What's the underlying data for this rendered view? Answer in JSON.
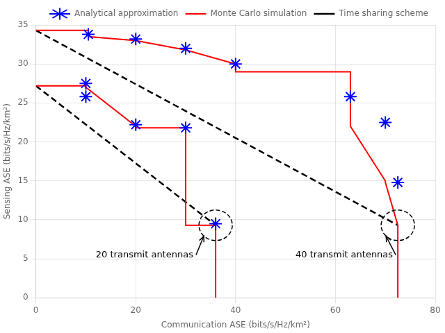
{
  "chart_data": {
    "type": "line",
    "xlabel": "Communication ASE (bits/s/Hz/km²)",
    "ylabel": "Sensing ASE (bits/s/Hz/km²)",
    "xlim": [
      0,
      80
    ],
    "ylim": [
      0,
      35
    ],
    "xticks": [
      0,
      20,
      40,
      60,
      80
    ],
    "yticks": [
      0,
      5,
      10,
      15,
      20,
      25,
      30,
      35
    ],
    "grid": true,
    "legend": "upper right",
    "series": [
      {
        "name": "Monte Carlo simulation",
        "color": "#ff0000",
        "line_style": "solid",
        "curves": [
          {
            "x": [
              0,
              10.0,
              10.0,
              20.0,
              20.0,
              30.0,
              30.0,
              36.0,
              36.0
            ],
            "values": [
              27.2,
              27.2,
              27.0,
              22.0,
              21.8,
              21.8,
              9.3,
              9.3,
              0.0
            ]
          },
          {
            "x": [
              0,
              10.5,
              10.5,
              20.0,
              30.0,
              40.0,
              40.0,
              63.0,
              63.0,
              70.0,
              70.0,
              72.5,
              72.5
            ],
            "values": [
              34.3,
              34.3,
              33.5,
              33.0,
              31.8,
              30.0,
              29.0,
              29.0,
              22.0,
              15.0,
              14.8,
              9.3,
              0.0
            ]
          }
        ]
      },
      {
        "name": "Analytical approximation",
        "color": "#0000ff",
        "marker": "star",
        "line_style": "none",
        "curves": [
          {
            "x": [
              10.0,
              10.0,
              20.0,
              30.0,
              36.0
            ],
            "values": [
              27.5,
              25.8,
              22.2,
              21.8,
              9.5
            ]
          },
          {
            "x": [
              10.5,
              20.0,
              30.0,
              40.0,
              63.0,
              70.0,
              72.5
            ],
            "values": [
              33.8,
              33.2,
              32.0,
              30.0,
              25.8,
              22.5,
              14.8
            ]
          }
        ]
      },
      {
        "name": "Time sharing scheme",
        "color": "#000000",
        "line_style": "dashed",
        "curves": [
          {
            "x": [
              0,
              36.0
            ],
            "values": [
              27.2,
              9.3
            ]
          },
          {
            "x": [
              0,
              72.5
            ],
            "values": [
              34.3,
              9.3
            ]
          }
        ]
      }
    ],
    "annotations": [
      {
        "text": "20 transmit antennas",
        "x": 12,
        "y": 5.5,
        "point": [
          36.0,
          9.3
        ]
      },
      {
        "text": "40 transmit antennas",
        "x": 52,
        "y": 5.5,
        "point": [
          72.5,
          9.3
        ]
      }
    ]
  }
}
